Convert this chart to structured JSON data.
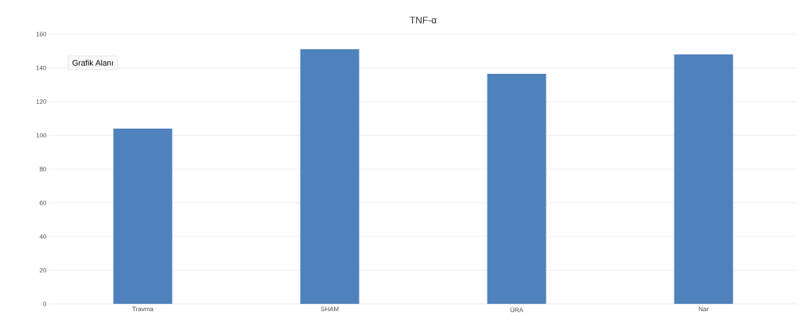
{
  "chart_data": {
    "type": "bar",
    "title": "TNF-α",
    "categories": [
      "Travma",
      "SHAM",
      "ÜRA",
      "Nar"
    ],
    "values": [
      104,
      151,
      136.5,
      148
    ],
    "color": "#4f81bd",
    "ylim": [
      0,
      160
    ],
    "yticks": [
      0,
      20,
      40,
      60,
      80,
      100,
      120,
      140,
      160
    ],
    "grid": "y",
    "annotations": [
      "Grafik Alanı"
    ]
  }
}
